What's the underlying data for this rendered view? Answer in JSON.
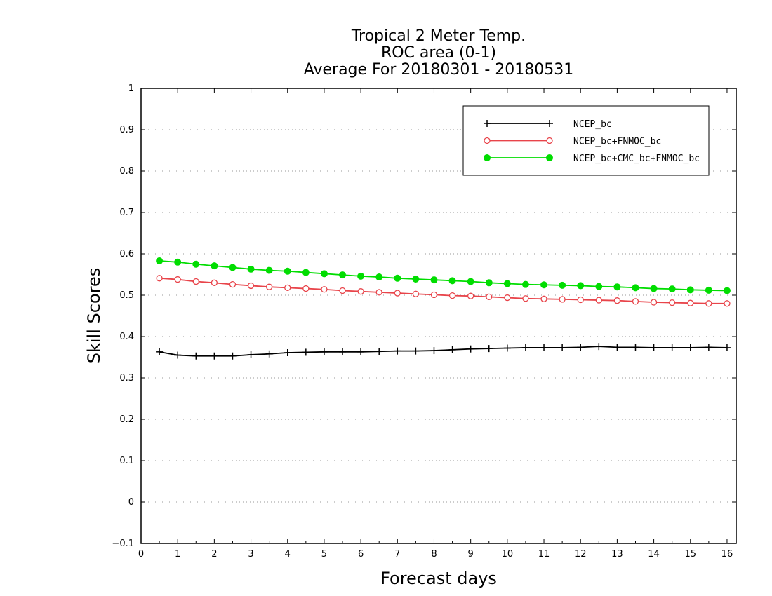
{
  "chart_data": {
    "type": "line",
    "title": [
      "Tropical 2 Meter Temp.",
      "ROC area (0-1)",
      "Average For 20180301 - 20180531"
    ],
    "xlabel": "Forecast days",
    "ylabel": "Skill Scores",
    "xlim": [
      0,
      16.25
    ],
    "ylim": [
      -0.1,
      1
    ],
    "xticks": [
      "0",
      "1",
      "2",
      "3",
      "4",
      "5",
      "6",
      "7",
      "8",
      "9",
      "10",
      "11",
      "12",
      "13",
      "14",
      "15",
      "16"
    ],
    "yticks": [
      "−0.1",
      "0",
      "0.1",
      "0.2",
      "0.3",
      "0.4",
      "0.5",
      "0.6",
      "0.7",
      "0.8",
      "0.9",
      "1"
    ],
    "grid": "horizontal dotted",
    "legend_position": "top-right",
    "x": [
      0.5,
      1,
      1.5,
      2,
      2.5,
      3,
      3.5,
      4,
      4.5,
      5,
      5.5,
      6,
      6.5,
      7,
      7.5,
      8,
      8.5,
      9,
      9.5,
      10,
      10.5,
      11,
      11.5,
      12,
      12.5,
      13,
      13.5,
      14,
      14.5,
      15,
      15.5,
      16
    ],
    "series": [
      {
        "name": "NCEP_bc",
        "color": "#000000",
        "marker": "plus",
        "values": [
          0.363,
          0.355,
          0.353,
          0.353,
          0.353,
          0.356,
          0.358,
          0.361,
          0.362,
          0.363,
          0.363,
          0.363,
          0.364,
          0.365,
          0.365,
          0.366,
          0.368,
          0.37,
          0.371,
          0.372,
          0.373,
          0.373,
          0.373,
          0.374,
          0.376,
          0.374,
          0.374,
          0.373,
          0.373,
          0.373,
          0.374,
          0.373
        ]
      },
      {
        "name": "NCEP_bc+FNMOC_bc",
        "color": "#e8444a",
        "marker": "open-circle",
        "values": [
          0.541,
          0.538,
          0.533,
          0.53,
          0.526,
          0.523,
          0.52,
          0.518,
          0.516,
          0.514,
          0.511,
          0.509,
          0.507,
          0.505,
          0.503,
          0.501,
          0.499,
          0.498,
          0.496,
          0.494,
          0.492,
          0.491,
          0.49,
          0.489,
          0.488,
          0.487,
          0.485,
          0.483,
          0.482,
          0.481,
          0.48,
          0.48
        ]
      },
      {
        "name": "NCEP_bc+CMC_bc+FNMOC_bc",
        "color": "#00dd00",
        "marker": "filled-circle",
        "values": [
          0.583,
          0.58,
          0.575,
          0.571,
          0.567,
          0.563,
          0.56,
          0.558,
          0.555,
          0.552,
          0.549,
          0.546,
          0.544,
          0.541,
          0.539,
          0.537,
          0.535,
          0.533,
          0.53,
          0.528,
          0.526,
          0.525,
          0.524,
          0.523,
          0.521,
          0.52,
          0.518,
          0.516,
          0.515,
          0.513,
          0.512,
          0.511
        ]
      }
    ]
  }
}
